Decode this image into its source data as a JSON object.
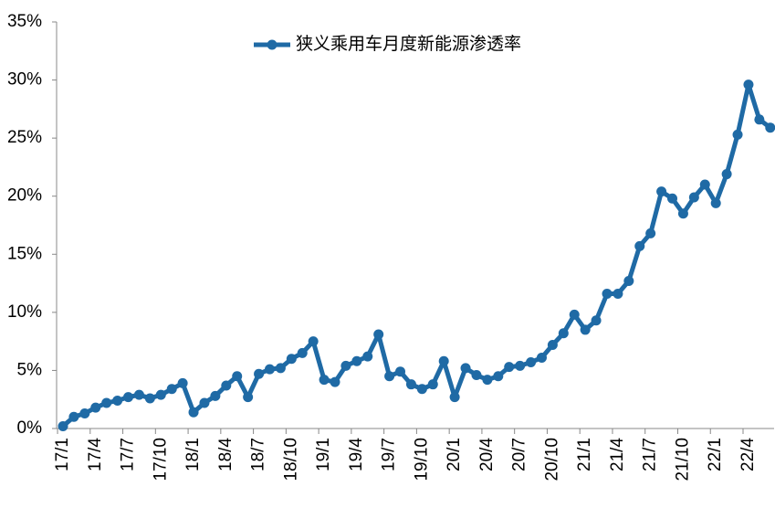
{
  "chart_data": {
    "type": "line",
    "categories": [
      "17/1",
      null,
      null,
      "17/4",
      null,
      null,
      "17/7",
      null,
      null,
      "17/10",
      null,
      null,
      "18/1",
      null,
      null,
      "18/4",
      null,
      null,
      "18/7",
      null,
      null,
      "18/10",
      null,
      null,
      "19/1",
      null,
      null,
      "19/4",
      null,
      null,
      "19/7",
      null,
      null,
      "19/10",
      null,
      null,
      "20/1",
      null,
      null,
      "20/4",
      null,
      null,
      "20/7",
      null,
      null,
      "20/10",
      null,
      null,
      "21/1",
      null,
      null,
      "21/4",
      null,
      null,
      "21/7",
      null,
      null,
      "21/10",
      null,
      null,
      "22/1",
      null,
      null,
      "22/4",
      null,
      null
    ],
    "series": [
      {
        "name": "狭义乘用车月度新能源渗透率",
        "color": "#1f6aa5",
        "values": [
          0.2,
          1.0,
          1.3,
          1.8,
          2.2,
          2.4,
          2.7,
          2.9,
          2.6,
          2.9,
          3.4,
          3.9,
          1.4,
          2.2,
          2.8,
          3.7,
          4.5,
          2.7,
          4.7,
          5.1,
          5.2,
          6.0,
          6.5,
          7.5,
          4.2,
          4.0,
          5.4,
          5.8,
          6.2,
          8.1,
          4.5,
          4.9,
          3.8,
          3.4,
          3.8,
          5.8,
          2.7,
          5.2,
          4.6,
          4.2,
          4.5,
          5.3,
          5.4,
          5.7,
          6.1,
          7.2,
          8.2,
          9.8,
          8.5,
          9.3,
          11.6,
          11.6,
          12.7,
          15.7,
          16.8,
          20.4,
          19.8,
          18.5,
          19.9,
          21.0,
          19.4,
          21.9,
          25.3,
          29.6,
          26.6,
          25.9
        ]
      }
    ],
    "ylim": [
      0,
      35
    ],
    "yticks": [
      {
        "value": 0,
        "label": "0%"
      },
      {
        "value": 5,
        "label": "5%"
      },
      {
        "value": 10,
        "label": "10%"
      },
      {
        "value": 15,
        "label": "15%"
      },
      {
        "value": 20,
        "label": "20%"
      },
      {
        "value": 25,
        "label": "25%"
      },
      {
        "value": 30,
        "label": "30%"
      },
      {
        "value": 35,
        "label": "35%"
      }
    ],
    "legend": "top"
  }
}
